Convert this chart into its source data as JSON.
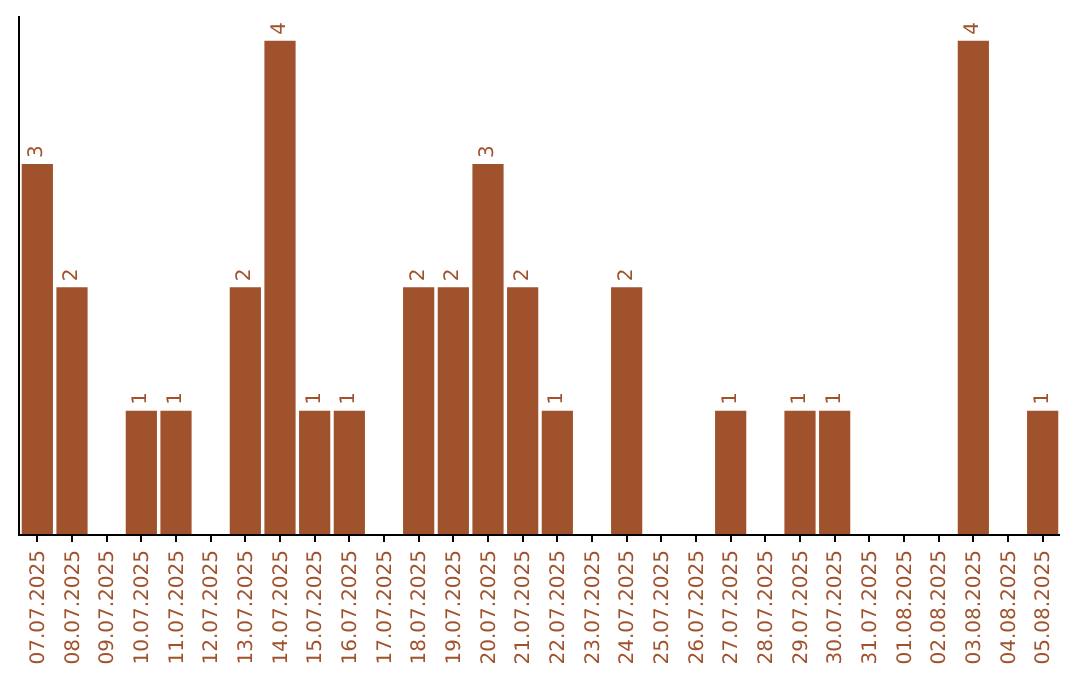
{
  "chart_data": {
    "type": "bar",
    "categories": [
      "07.07.2025",
      "08.07.2025",
      "09.07.2025",
      "10.07.2025",
      "11.07.2025",
      "12.07.2025",
      "13.07.2025",
      "14.07.2025",
      "15.07.2025",
      "16.07.2025",
      "17.07.2025",
      "18.07.2025",
      "19.07.2025",
      "20.07.2025",
      "21.07.2025",
      "22.07.2025",
      "23.07.2025",
      "24.07.2025",
      "25.07.2025",
      "26.07.2025",
      "27.07.2025",
      "28.07.2025",
      "29.07.2025",
      "30.07.2025",
      "31.07.2025",
      "01.08.2025",
      "02.08.2025",
      "03.08.2025",
      "04.08.2025",
      "05.08.2025"
    ],
    "values": [
      3,
      2,
      0,
      1,
      1,
      0,
      2,
      4,
      1,
      1,
      0,
      2,
      2,
      3,
      2,
      1,
      0,
      2,
      0,
      0,
      1,
      0,
      1,
      1,
      0,
      0,
      0,
      4,
      0,
      1
    ],
    "value_labels": [
      "3",
      "2",
      null,
      "1",
      "1",
      null,
      "2",
      "4",
      "1",
      "1",
      null,
      "2",
      "2",
      "3",
      "2",
      "1",
      null,
      "2",
      null,
      null,
      "1",
      null,
      "1",
      "1",
      null,
      null,
      null,
      "4",
      null,
      "1"
    ],
    "color": "#a0522d",
    "ylim": [
      0,
      4.2
    ],
    "tick_labels": "x"
  }
}
